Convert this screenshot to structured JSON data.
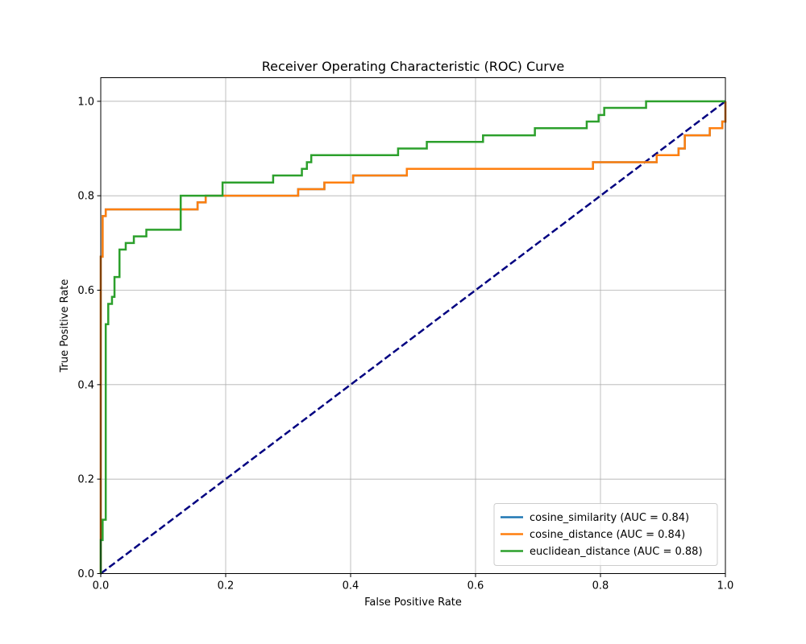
{
  "chart_data": {
    "type": "line",
    "title": "Receiver Operating Characteristic (ROC) Curve",
    "xlabel": "False Positive Rate",
    "ylabel": "True Positive Rate",
    "xlim": [
      0.0,
      1.0
    ],
    "ylim": [
      0.0,
      1.05
    ],
    "x_ticks": [
      0.0,
      0.2,
      0.4,
      0.6,
      0.8,
      1.0
    ],
    "y_ticks": [
      0.0,
      0.2,
      0.4,
      0.6,
      0.8,
      1.0
    ],
    "x_tick_labels": [
      "0.0",
      "0.2",
      "0.4",
      "0.6",
      "0.8",
      "1.0"
    ],
    "y_tick_labels": [
      "0.0",
      "0.2",
      "0.4",
      "0.6",
      "0.8",
      "1.0"
    ],
    "grid": true,
    "legend_position": "lower-right",
    "series": [
      {
        "name": "cosine_similarity (AUC = 0.84)",
        "color": "#1f77b4",
        "style": "step",
        "x": [
          0.0,
          0.0,
          0.0,
          0.003,
          0.003,
          0.008,
          0.008,
          0.155,
          0.155,
          0.168,
          0.168,
          0.316,
          0.316,
          0.358,
          0.358,
          0.404,
          0.404,
          0.49,
          0.49,
          0.788,
          0.788,
          0.89,
          0.89,
          0.925,
          0.925,
          0.935,
          0.935,
          0.975,
          0.975,
          0.995,
          0.995,
          1.0,
          1.0
        ],
        "y": [
          0.0,
          0.671,
          0.671,
          0.671,
          0.757,
          0.757,
          0.771,
          0.771,
          0.786,
          0.786,
          0.8,
          0.8,
          0.814,
          0.814,
          0.828,
          0.828,
          0.843,
          0.843,
          0.857,
          0.857,
          0.871,
          0.871,
          0.886,
          0.886,
          0.9,
          0.9,
          0.928,
          0.928,
          0.943,
          0.943,
          0.957,
          0.957,
          1.0
        ]
      },
      {
        "name": "cosine_distance (AUC = 0.84)",
        "color": "#ff7f0e",
        "style": "step",
        "x": [
          0.0,
          0.0,
          0.0,
          0.003,
          0.003,
          0.008,
          0.008,
          0.155,
          0.155,
          0.168,
          0.168,
          0.316,
          0.316,
          0.358,
          0.358,
          0.404,
          0.404,
          0.49,
          0.49,
          0.788,
          0.788,
          0.89,
          0.89,
          0.925,
          0.925,
          0.935,
          0.935,
          0.975,
          0.975,
          0.995,
          0.995,
          1.0,
          1.0
        ],
        "y": [
          0.0,
          0.671,
          0.671,
          0.671,
          0.757,
          0.757,
          0.771,
          0.771,
          0.786,
          0.786,
          0.8,
          0.8,
          0.814,
          0.814,
          0.828,
          0.828,
          0.843,
          0.843,
          0.857,
          0.857,
          0.871,
          0.871,
          0.886,
          0.886,
          0.9,
          0.9,
          0.928,
          0.928,
          0.943,
          0.943,
          0.957,
          0.957,
          1.0
        ]
      },
      {
        "name": "euclidean_distance (AUC = 0.88)",
        "color": "#2ca02c",
        "style": "step",
        "x": [
          0.0,
          0.0,
          0.003,
          0.003,
          0.008,
          0.008,
          0.012,
          0.012,
          0.018,
          0.018,
          0.022,
          0.022,
          0.03,
          0.03,
          0.04,
          0.04,
          0.053,
          0.053,
          0.073,
          0.073,
          0.128,
          0.128,
          0.195,
          0.195,
          0.276,
          0.276,
          0.322,
          0.322,
          0.33,
          0.33,
          0.337,
          0.337,
          0.476,
          0.476,
          0.522,
          0.522,
          0.612,
          0.612,
          0.695,
          0.695,
          0.778,
          0.778,
          0.797,
          0.797,
          0.806,
          0.806,
          0.873,
          0.873,
          1.0
        ],
        "y": [
          0.0,
          0.071,
          0.071,
          0.114,
          0.114,
          0.528,
          0.528,
          0.571,
          0.571,
          0.586,
          0.586,
          0.628,
          0.628,
          0.686,
          0.686,
          0.7,
          0.7,
          0.714,
          0.714,
          0.728,
          0.728,
          0.8,
          0.8,
          0.828,
          0.828,
          0.843,
          0.843,
          0.857,
          0.857,
          0.871,
          0.871,
          0.886,
          0.886,
          0.9,
          0.9,
          0.914,
          0.914,
          0.928,
          0.928,
          0.943,
          0.943,
          0.957,
          0.957,
          0.971,
          0.971,
          0.986,
          0.986,
          1.0,
          1.0
        ]
      }
    ],
    "reference_line": {
      "color": "#000080",
      "style": "dashed",
      "x": [
        0.0,
        1.0
      ],
      "y": [
        0.0,
        1.0
      ]
    }
  }
}
